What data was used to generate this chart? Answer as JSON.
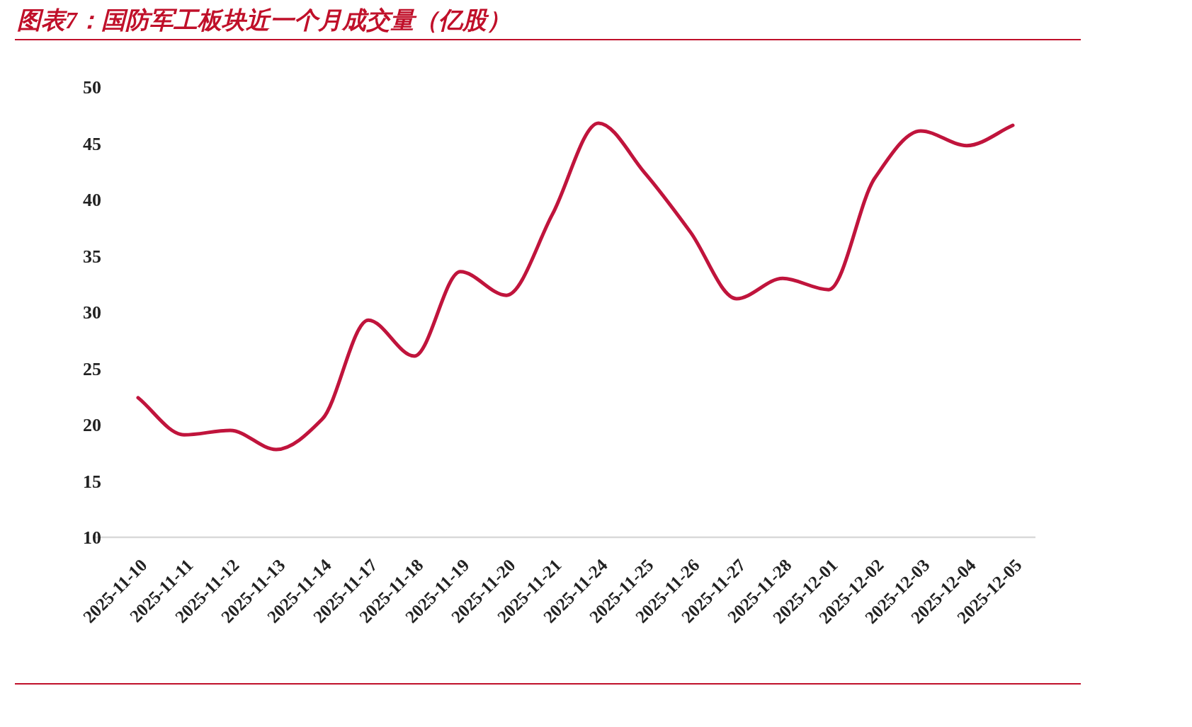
{
  "chart_data": {
    "type": "line",
    "title": "图表7：国防军工板块近一个月成交量（亿股）",
    "categories": [
      "2025-11-10",
      "2025-11-11",
      "2025-11-12",
      "2025-11-13",
      "2025-11-14",
      "2025-11-17",
      "2025-11-18",
      "2025-11-19",
      "2025-11-20",
      "2025-11-21",
      "2025-11-24",
      "2025-11-25",
      "2025-11-26",
      "2025-11-27",
      "2025-11-28",
      "2025-12-01",
      "2025-12-02",
      "2025-12-03",
      "2025-12-04",
      "2025-12-05"
    ],
    "series": [
      {
        "color": "#c0143c",
        "values": [
          22.4,
          19.1,
          19.5,
          17.8,
          20.5,
          29.3,
          26.1,
          33.6,
          31.5,
          38.7,
          46.8,
          42.4,
          37.1,
          31.2,
          33.0,
          32.0,
          41.9,
          46.1,
          44.8,
          46.6
        ]
      }
    ],
    "ylim": [
      10,
      50
    ],
    "yticks": [
      10,
      15,
      20,
      25,
      30,
      35,
      40,
      45,
      50
    ],
    "grid": false,
    "marker": "none",
    "line_style": "solid"
  }
}
